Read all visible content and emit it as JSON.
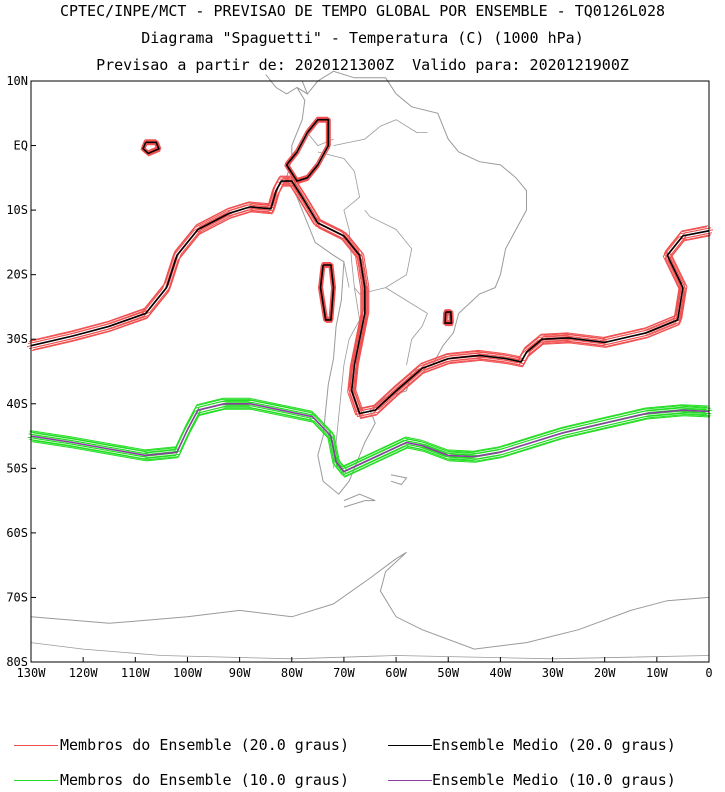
{
  "title": {
    "line1": "CPTEC/INPE/MCT - PREVISAO DE TEMPO GLOBAL POR ENSEMBLE - TQ0126L028",
    "line2": "Diagrama \"Spaguetti\" - Temperatura (C) (1000 hPa)",
    "line3": "Previsao a partir de: 2020121300Z  Valido para: 2020121900Z"
  },
  "axes": {
    "lat_ticks": [
      "10N",
      "EQ",
      "10S",
      "20S",
      "30S",
      "40S",
      "50S",
      "60S",
      "70S",
      "80S"
    ],
    "lat_values": [
      10,
      0,
      -10,
      -20,
      -30,
      -40,
      -50,
      -60,
      -70,
      -80
    ],
    "lon_ticks": [
      "130W",
      "120W",
      "110W",
      "100W",
      "90W",
      "80W",
      "70W",
      "60W",
      "50W",
      "40W",
      "30W",
      "20W",
      "10W",
      "0"
    ],
    "lon_values": [
      -130,
      -120,
      -110,
      -100,
      -90,
      -80,
      -70,
      -60,
      -50,
      -40,
      -30,
      -20,
      -10,
      0
    ]
  },
  "colors": {
    "member20": "#f05050",
    "mean20": "#000000",
    "member10": "#22dd22",
    "mean10": "#8a3fa0",
    "coast": "#9a9a9a"
  },
  "legend": {
    "member20_label": "Membros do Ensemble (20.0 graus)",
    "mean20_label": "Ensemble Medio (20.0 graus)",
    "member10_label": "Membros do Ensemble (10.0 graus)",
    "mean10_label": "Ensemble Medio (10.0 graus)"
  },
  "contours": {
    "iso20_main": [
      [
        -130,
        -31
      ],
      [
        -122,
        -29.5
      ],
      [
        -115,
        -28
      ],
      [
        -108,
        -26
      ],
      [
        -104,
        -22
      ],
      [
        -102,
        -17
      ],
      [
        -98,
        -13
      ],
      [
        -92,
        -10.5
      ],
      [
        -88,
        -9.5
      ],
      [
        -84,
        -9.8
      ],
      [
        -83,
        -7
      ],
      [
        -82,
        -5.5
      ],
      [
        -80,
        -5.5
      ],
      [
        -78,
        -8
      ],
      [
        -75,
        -12
      ],
      [
        -70,
        -14
      ],
      [
        -67,
        -17
      ],
      [
        -66,
        -22
      ],
      [
        -66,
        -26
      ],
      [
        -67,
        -30
      ],
      [
        -68,
        -34
      ],
      [
        -68.5,
        -38
      ],
      [
        -67,
        -41.5
      ],
      [
        -64,
        -41
      ],
      [
        -60,
        -38
      ],
      [
        -55,
        -34.5
      ],
      [
        -50,
        -33
      ],
      [
        -44,
        -32.5
      ],
      [
        -39,
        -33
      ],
      [
        -36,
        -33.5
      ],
      [
        -35,
        -32
      ],
      [
        -32,
        -30
      ],
      [
        -27,
        -29.8
      ],
      [
        -20,
        -30.5
      ],
      [
        -12,
        -29
      ],
      [
        -6,
        -27
      ],
      [
        -5,
        -22
      ],
      [
        -8,
        -17
      ],
      [
        -5,
        -14
      ],
      [
        0,
        -13.2
      ]
    ],
    "iso20_peru": [
      [
        -81,
        -3
      ],
      [
        -79,
        -1
      ],
      [
        -77,
        2
      ],
      [
        -75,
        4
      ],
      [
        -73,
        4
      ],
      [
        -73,
        0
      ],
      [
        -75,
        -3
      ],
      [
        -77,
        -5
      ],
      [
        -79,
        -5.5
      ],
      [
        -81,
        -3
      ]
    ],
    "iso20_andes": [
      [
        -74,
        -18.5
      ],
      [
        -72.5,
        -18.5
      ],
      [
        -72,
        -22
      ],
      [
        -72.5,
        -27
      ],
      [
        -73.5,
        -27
      ],
      [
        -74.5,
        -22
      ],
      [
        -74,
        -18.5
      ]
    ],
    "iso20_galapagos": [
      [
        -108,
        0.5
      ],
      [
        -106,
        0.5
      ],
      [
        -105.5,
        -0.5
      ],
      [
        -107.5,
        -1.2
      ],
      [
        -108.5,
        -0.5
      ],
      [
        -108,
        0.5
      ]
    ],
    "iso20_south_brazil": [
      [
        -50.5,
        -25.8
      ],
      [
        -49.5,
        -25.8
      ],
      [
        -49.4,
        -27.5
      ],
      [
        -50.6,
        -27.5
      ],
      [
        -50.5,
        -25.8
      ]
    ],
    "iso10_main": [
      [
        -130,
        -45
      ],
      [
        -122,
        -46
      ],
      [
        -115,
        -47
      ],
      [
        -108,
        -48
      ],
      [
        -102,
        -47.5
      ],
      [
        -100,
        -44
      ],
      [
        -98,
        -41
      ],
      [
        -93,
        -40
      ],
      [
        -88,
        -40
      ],
      [
        -82,
        -41
      ],
      [
        -76,
        -42
      ],
      [
        -72.5,
        -45
      ],
      [
        -71.5,
        -49
      ],
      [
        -70,
        -50.5
      ],
      [
        -66,
        -49
      ],
      [
        -62,
        -47.5
      ],
      [
        -58,
        -46
      ],
      [
        -55,
        -46.5
      ],
      [
        -50,
        -48
      ],
      [
        -45,
        -48.2
      ],
      [
        -40,
        -47.5
      ],
      [
        -34,
        -46
      ],
      [
        -28,
        -44.5
      ],
      [
        -20,
        -43
      ],
      [
        -12,
        -41.5
      ],
      [
        -5,
        -41
      ],
      [
        0,
        -41.2
      ]
    ]
  }
}
